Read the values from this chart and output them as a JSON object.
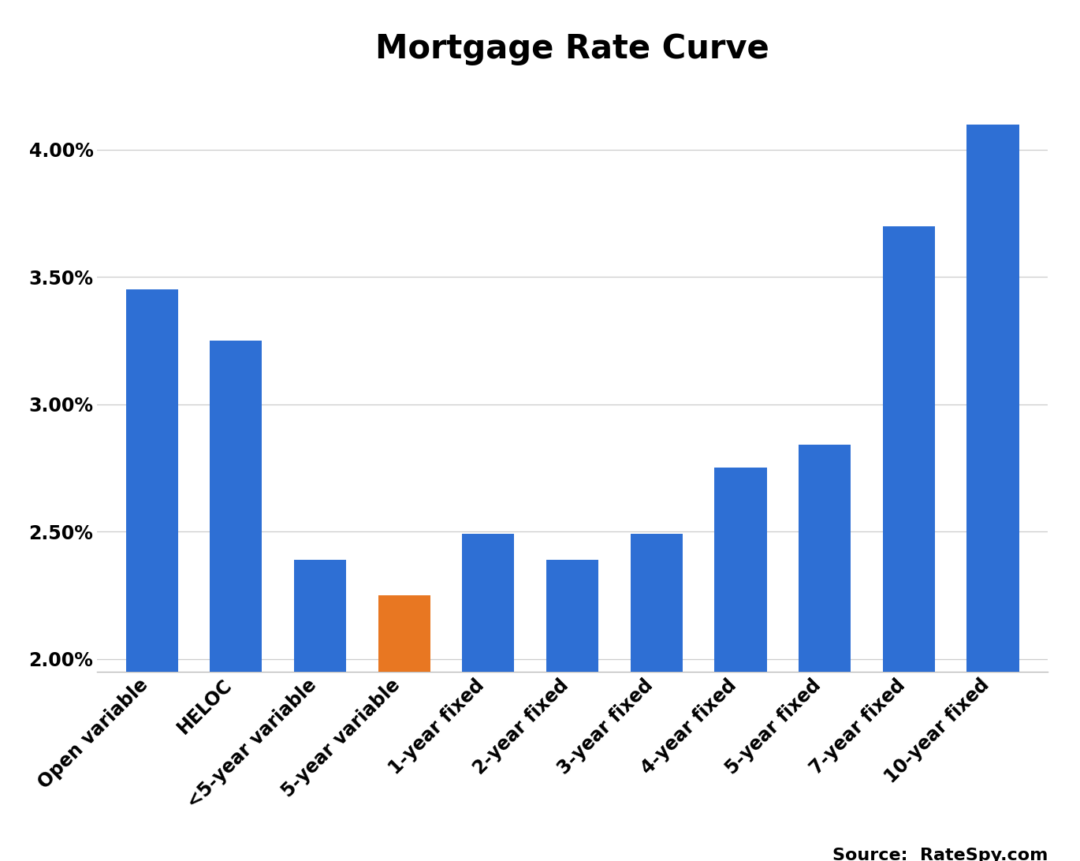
{
  "title": "Mortgage Rate Curve",
  "categories": [
    "Open variable",
    "HELOC",
    "<5-year variable",
    "5-year variable",
    "1-year fixed",
    "2-year fixed",
    "3-year fixed",
    "4-year fixed",
    "5-year fixed",
    "7-year fixed",
    "10-year fixed"
  ],
  "values": [
    0.0345,
    0.0325,
    0.0239,
    0.0225,
    0.0249,
    0.0239,
    0.0249,
    0.0275,
    0.0284,
    0.037,
    0.041
  ],
  "bar_colors": [
    "#2E6FD4",
    "#2E6FD4",
    "#2E6FD4",
    "#E87722",
    "#2E6FD4",
    "#2E6FD4",
    "#2E6FD4",
    "#2E6FD4",
    "#2E6FD4",
    "#2E6FD4",
    "#2E6FD4"
  ],
  "ylim": [
    0.0195,
    0.0425
  ],
  "yticks": [
    0.02,
    0.025,
    0.03,
    0.035,
    0.04
  ],
  "ytick_labels": [
    "2.00%",
    "2.50%",
    "3.00%",
    "3.50%",
    "4.00%"
  ],
  "source_text": "Source:  RateSpy.com",
  "background_color": "#ffffff",
  "title_fontsize": 30,
  "tick_fontsize": 17,
  "source_fontsize": 16,
  "bar_width": 0.62
}
